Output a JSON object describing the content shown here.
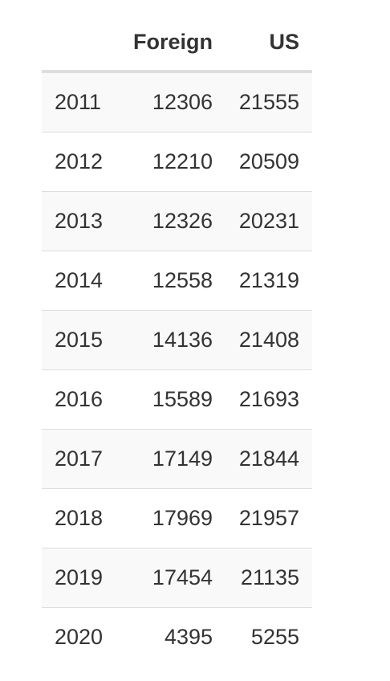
{
  "table": {
    "headers": {
      "year": "",
      "foreign": "Foreign",
      "us": "US"
    },
    "rows": [
      {
        "year": "2011",
        "foreign": "12306",
        "us": "21555"
      },
      {
        "year": "2012",
        "foreign": "12210",
        "us": "20509"
      },
      {
        "year": "2013",
        "foreign": "12326",
        "us": "20231"
      },
      {
        "year": "2014",
        "foreign": "12558",
        "us": "21319"
      },
      {
        "year": "2015",
        "foreign": "14136",
        "us": "21408"
      },
      {
        "year": "2016",
        "foreign": "15589",
        "us": "21693"
      },
      {
        "year": "2017",
        "foreign": "17149",
        "us": "21844"
      },
      {
        "year": "2018",
        "foreign": "17969",
        "us": "21957"
      },
      {
        "year": "2019",
        "foreign": "17454",
        "us": "21135"
      },
      {
        "year": "2020",
        "foreign": "4395",
        "us": "5255"
      }
    ]
  },
  "colors": {
    "text": "#333333",
    "stripe": "#f9f9f9",
    "rule": "#dddddd",
    "background": "#ffffff"
  }
}
